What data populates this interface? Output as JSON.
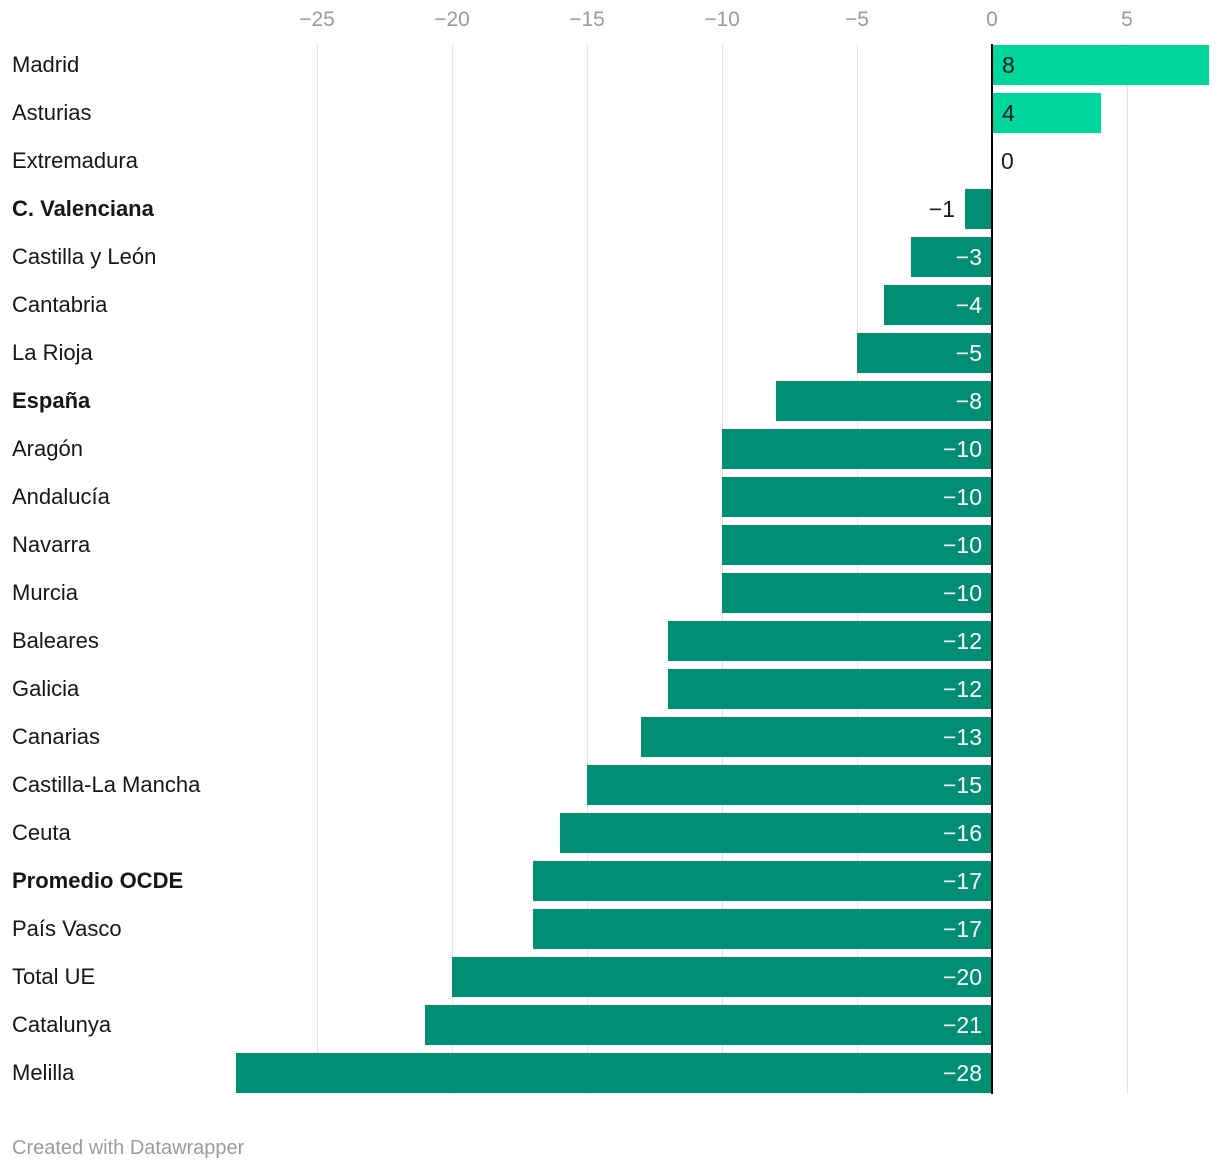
{
  "chart_data": {
    "type": "bar",
    "orientation": "horizontal",
    "categories": [
      "Madrid",
      "Asturias",
      "Extremadura",
      "C. Valenciana",
      "Castilla y León",
      "Cantabria",
      "La Rioja",
      "España",
      "Aragón",
      "Andalucía",
      "Navarra",
      "Murcia",
      "Baleares",
      "Galicia",
      "Canarias",
      "Castilla-La Mancha",
      "Ceuta",
      "Promedio OCDE",
      "País Vasco",
      "Total UE",
      "Catalunya",
      "Melilla"
    ],
    "values": [
      8,
      4,
      0,
      -1,
      -3,
      -4,
      -5,
      -8,
      -10,
      -10,
      -10,
      -10,
      -12,
      -12,
      -13,
      -15,
      -16,
      -17,
      -17,
      -20,
      -21,
      -28
    ],
    "emphasized_categories": [
      "C. Valenciana",
      "España",
      "Promedio OCDE"
    ],
    "x_ticks": [
      -25,
      -20,
      -15,
      -10,
      -5,
      0,
      5
    ],
    "xlim": [
      -36.7,
      8.4
    ],
    "axis_position": "top",
    "grid": true,
    "value_labels": true,
    "legend": "none",
    "title": "",
    "xlabel": "",
    "ylabel": ""
  },
  "style": {
    "positive_bar_color": "#00d69b",
    "negative_bar_color": "#008f73",
    "zero_axis_color": "#000000",
    "gridline_color": "#e4e4e4",
    "tick_label_color": "#9a9a9a",
    "category_label_color": "#161616",
    "value_label_dark_color": "#1d1d1d",
    "value_label_light_color": "#ffffff",
    "credit_color": "#9b9b9b"
  },
  "footer": {
    "credit_label": "Created with Datawrapper"
  }
}
